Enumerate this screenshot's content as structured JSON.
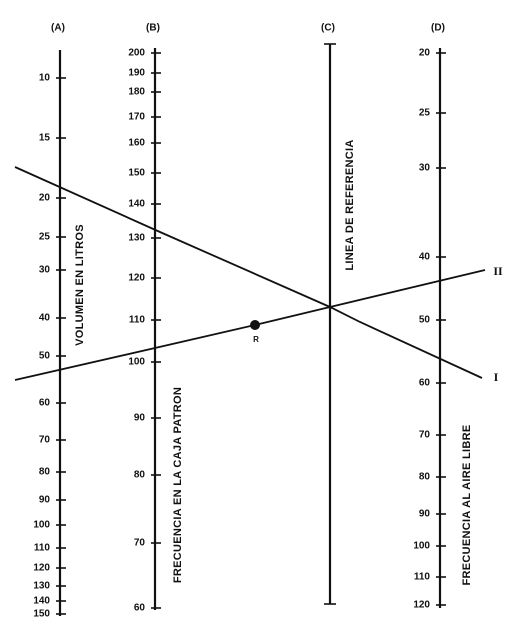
{
  "scales": [
    {
      "header": "(A)",
      "title": "VOLUMEN EN LITROS",
      "ticks": [
        10,
        15,
        20,
        25,
        30,
        40,
        50,
        60,
        70,
        80,
        90,
        100,
        110,
        120,
        130,
        140,
        150
      ]
    },
    {
      "header": "(B)",
      "title": "FRECUENCIA EN LA CAJA PATRON",
      "ticks": [
        200,
        190,
        180,
        170,
        160,
        150,
        140,
        130,
        120,
        110,
        100,
        90,
        80,
        70,
        60
      ]
    },
    {
      "header": "(C)",
      "title": "LINEA DE REFERENCIA",
      "ticks": []
    },
    {
      "header": "(D)",
      "title": "FRECUENCIA AL AIRE LIBRE",
      "ticks": [
        20,
        25,
        30,
        40,
        50,
        60,
        70,
        80,
        90,
        100,
        110,
        120
      ]
    }
  ],
  "lines": [
    {
      "label": "I"
    },
    {
      "label": "II"
    }
  ],
  "point": {
    "label": "R"
  }
}
